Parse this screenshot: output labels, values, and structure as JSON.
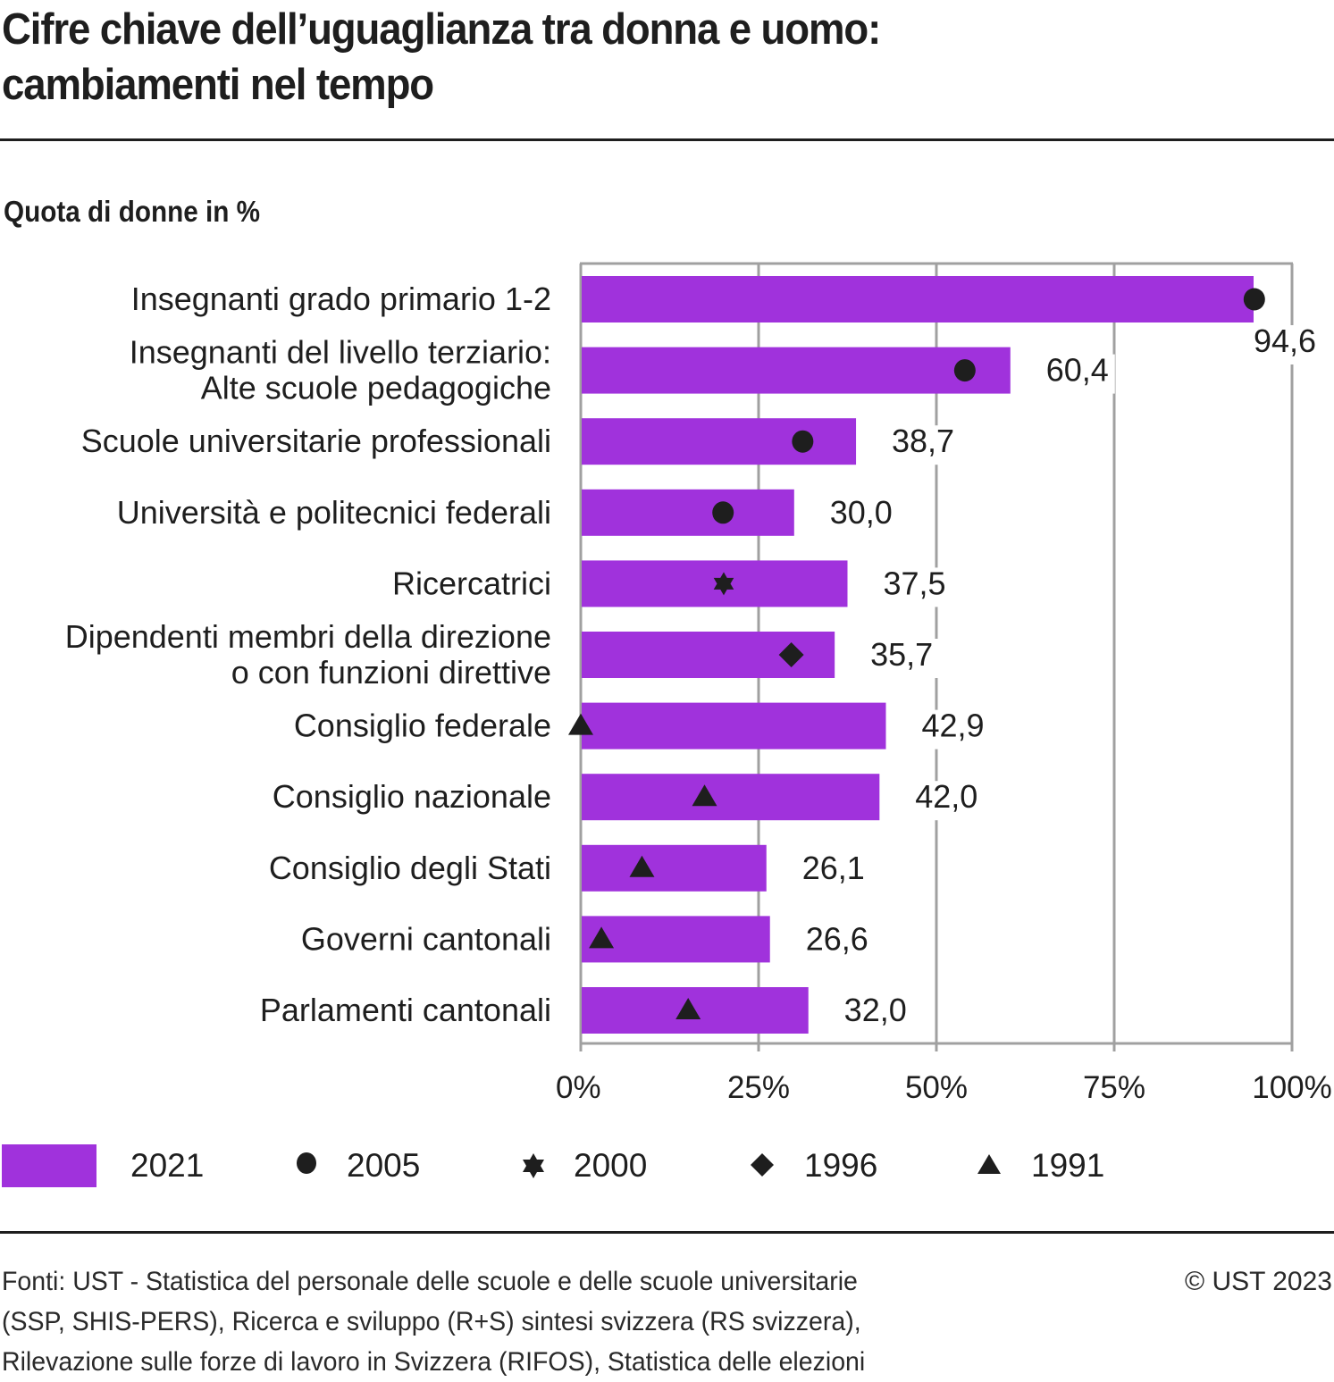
{
  "header": {
    "title_line1": "Cifre chiave dell’uguaglianza tra donna e uomo:",
    "title_line2": "cambiamenti nel tempo",
    "subtitle": "Quota di donne in %"
  },
  "colors": {
    "bar": "#a032dc",
    "marker": "#1e1e1e",
    "grid": "#a0a0a0",
    "text": "#1e1e1e"
  },
  "chart_data": {
    "type": "bar",
    "orientation": "horizontal",
    "title": "Cifre chiave dell’uguaglianza tra donna e uomo: cambiamenti nel tempo",
    "subtitle": "Quota di donne in %",
    "xlabel": "",
    "ylabel": "",
    "xlim": [
      0,
      100
    ],
    "x_ticks": [
      0,
      25,
      50,
      75,
      100
    ],
    "x_tick_labels": [
      "0%",
      "25%",
      "50%",
      "75%",
      "100%"
    ],
    "grid": true,
    "legend_position": "bottom",
    "categories": [
      [
        "Insegnanti grado primario 1-2"
      ],
      [
        "Insegnanti del livello terziario:",
        "Alte scuole pedagogiche"
      ],
      [
        "Scuole universitarie professionali"
      ],
      [
        "Università e politecnici federali"
      ],
      [
        "Ricercatrici"
      ],
      [
        "Dipendenti membri della direzione",
        "o con funzioni direttive"
      ],
      [
        "Consiglio federale"
      ],
      [
        "Consiglio nazionale"
      ],
      [
        "Consiglio degli Stati"
      ],
      [
        "Governi cantonali"
      ],
      [
        "Parlamenti cantonali"
      ]
    ],
    "series": [
      {
        "name": "2021",
        "kind": "bar",
        "values": [
          94.6,
          60.4,
          38.7,
          30.0,
          37.5,
          35.7,
          42.9,
          42.0,
          26.1,
          26.6,
          32.0
        ],
        "value_labels": [
          "94,6",
          "60,4",
          "38,7",
          "30,0",
          "37,5",
          "35,7",
          "42,9",
          "42,0",
          "26,1",
          "26,6",
          "32,0"
        ]
      },
      {
        "name": "2005",
        "kind": "marker",
        "symbol": "circle",
        "values": [
          94.7,
          54.0,
          31.2,
          20.0,
          null,
          null,
          null,
          null,
          null,
          null,
          null
        ]
      },
      {
        "name": "2000",
        "kind": "marker",
        "symbol": "star",
        "values": [
          null,
          null,
          null,
          null,
          20.1,
          null,
          null,
          null,
          null,
          null,
          null
        ]
      },
      {
        "name": "1996",
        "kind": "marker",
        "symbol": "diamond",
        "values": [
          null,
          null,
          null,
          null,
          null,
          29.6,
          null,
          null,
          null,
          null,
          null
        ]
      },
      {
        "name": "1991",
        "kind": "marker",
        "symbol": "triangle",
        "values": [
          null,
          null,
          null,
          null,
          null,
          null,
          0.0,
          17.4,
          8.6,
          2.9,
          15.1
        ]
      }
    ]
  },
  "legend": {
    "items": [
      {
        "label": "2021",
        "symbol": "bar-swatch"
      },
      {
        "label": "2005",
        "symbol": "circle"
      },
      {
        "label": "2000",
        "symbol": "star"
      },
      {
        "label": "1996",
        "symbol": "diamond"
      },
      {
        "label": "1991",
        "symbol": "triangle"
      }
    ]
  },
  "footer": {
    "sources_line1": "Fonti: UST - Statistica del personale delle scuole e delle scuole universitarie",
    "sources_line2": "(SSP, SHIS-PERS), Ricerca e sviluppo (R+S) sintesi svizzera (RS svizzera),",
    "sources_line3": "Rilevazione sulle forze di lavoro in Svizzera (RIFOS), Statistica delle elezioni",
    "copyright": "© UST 2023"
  }
}
